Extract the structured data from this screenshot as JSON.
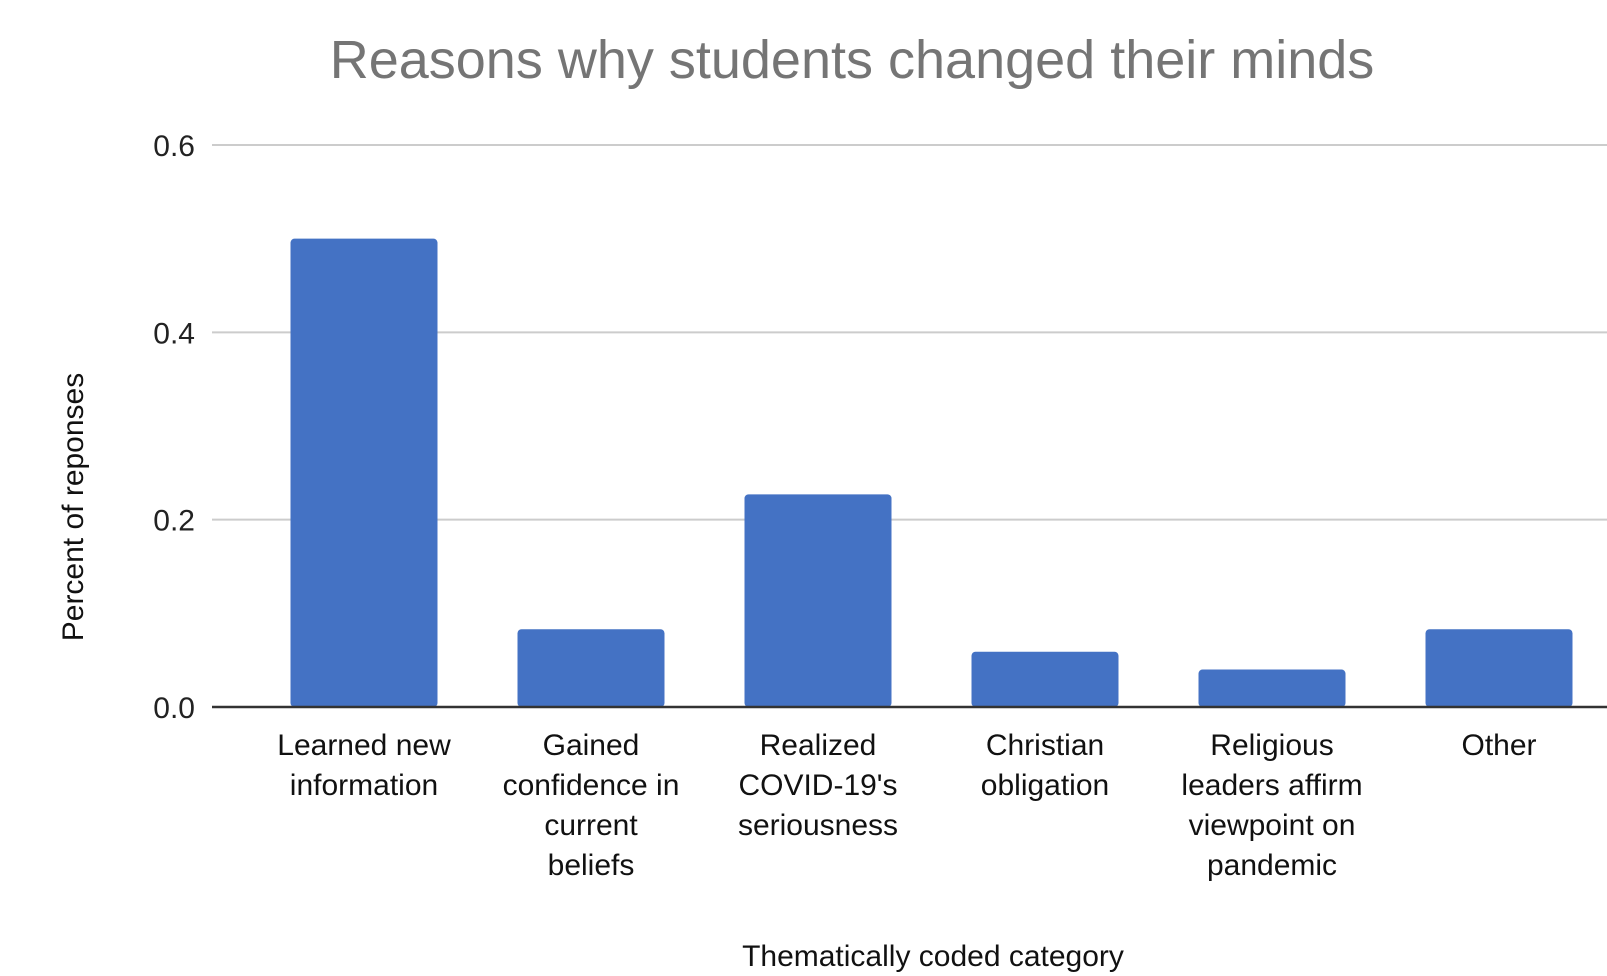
{
  "chart_data": {
    "type": "bar",
    "title": "Reasons why students changed their minds",
    "xlabel": "Thematically coded category",
    "ylabel": "Percent of reponses",
    "categories": [
      [
        "Learned new",
        "information"
      ],
      [
        "Gained",
        "confidence in",
        "current",
        "beliefs"
      ],
      [
        "Realized",
        "COVID-19's",
        "seriousness"
      ],
      [
        "Christian",
        "obligation"
      ],
      [
        "Religious",
        "leaders affirm",
        "viewpoint on",
        "pandemic"
      ],
      [
        "Other"
      ]
    ],
    "values": [
      0.5,
      0.083,
      0.227,
      0.059,
      0.04,
      0.083
    ],
    "ylim": [
      0,
      0.6
    ],
    "yticks": [
      "0.0",
      "0.2",
      "0.4",
      "0.6"
    ],
    "grid": true,
    "bar_color": "#4472c4"
  }
}
